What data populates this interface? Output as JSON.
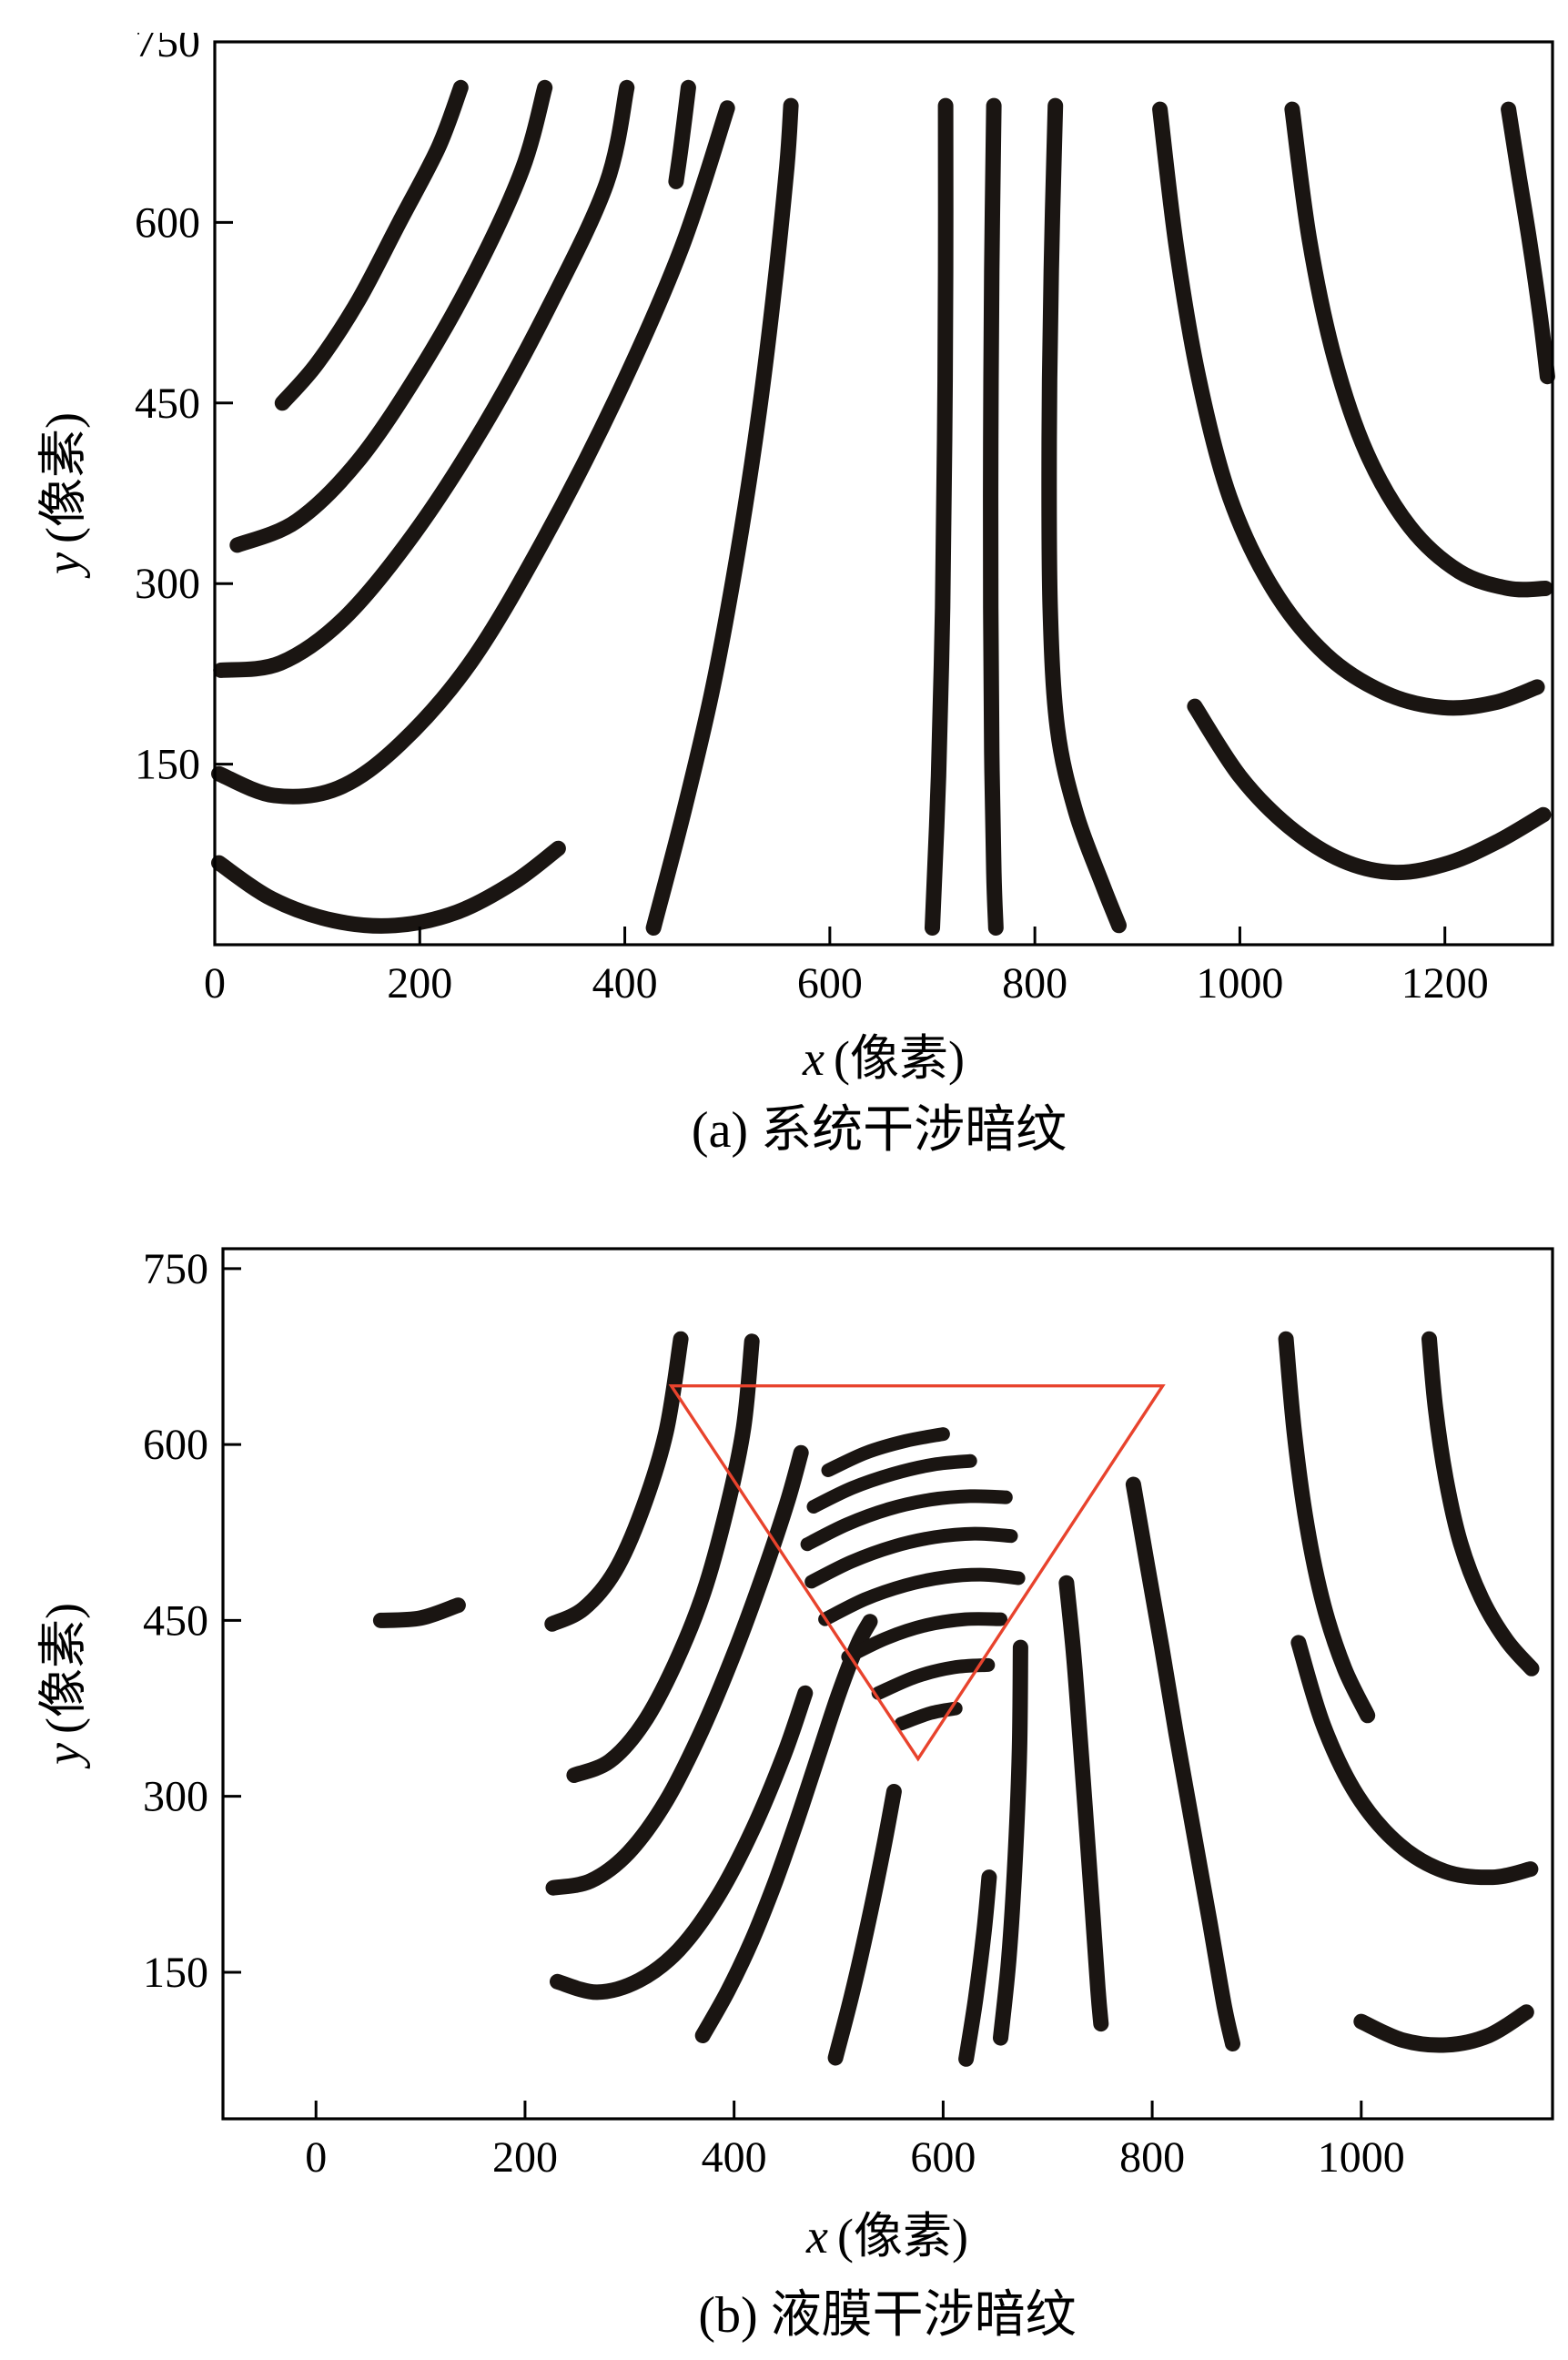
{
  "figure": {
    "background": "#ffffff",
    "fringe_color": "#1a1512",
    "axis_color": "#000000",
    "triangle_color": "#e8432d"
  },
  "chart_data": [
    {
      "id": "a",
      "type": "line",
      "caption": "(a) 系统干涉暗纹",
      "xlabel_var": "x",
      "xlabel_unit": "(像素)",
      "ylabel_var": "y",
      "ylabel_unit": "(像素)",
      "xlim": [
        0,
        1305
      ],
      "ylim": [
        0,
        750
      ],
      "xticks": [
        0,
        200,
        400,
        600,
        800,
        1000,
        1200
      ],
      "yticks": [
        150,
        300,
        450,
        600,
        750
      ],
      "grid": false,
      "fringes": [
        [
          [
            66,
            450
          ],
          [
            100,
            483
          ],
          [
            140,
            535
          ],
          [
            180,
            600
          ],
          [
            218,
            662
          ],
          [
            240,
            712
          ]
        ],
        [
          [
            22,
            332
          ],
          [
            80,
            352
          ],
          [
            140,
            402
          ],
          [
            200,
            477
          ],
          [
            255,
            560
          ],
          [
            300,
            644
          ],
          [
            322,
            712
          ]
        ],
        [
          [
            6,
            228
          ],
          [
            64,
            234
          ],
          [
            126,
            271
          ],
          [
            194,
            341
          ],
          [
            262,
            430
          ],
          [
            326,
            530
          ],
          [
            382,
            632
          ],
          [
            402,
            712
          ]
        ],
        [
          [
            4,
            142
          ],
          [
            58,
            124
          ],
          [
            120,
            130
          ],
          [
            181,
            167
          ],
          [
            250,
            235
          ],
          [
            320,
            335
          ],
          [
            392,
            455
          ],
          [
            455,
            578
          ],
          [
            500,
            695
          ]
        ],
        [
          [
            4,
            68
          ],
          [
            56,
            38
          ],
          [
            116,
            20
          ],
          [
            176,
            16
          ],
          [
            236,
            27
          ],
          [
            292,
            52
          ],
          [
            335,
            80
          ]
        ],
        [
          [
            462,
            712
          ],
          [
            455,
            664
          ],
          [
            450,
            634
          ]
        ],
        [
          [
            428,
            14
          ],
          [
            458,
            112
          ],
          [
            486,
            214
          ],
          [
            510,
            325
          ],
          [
            530,
            436
          ],
          [
            546,
            546
          ],
          [
            558,
            646
          ],
          [
            562,
            697
          ]
        ],
        [
          [
            700,
            14
          ],
          [
            706,
            140
          ],
          [
            710,
            280
          ],
          [
            712,
            420
          ],
          [
            713,
            560
          ],
          [
            713,
            697
          ]
        ],
        [
          [
            762,
            14
          ],
          [
            760,
            60
          ],
          [
            758,
            160
          ],
          [
            757,
            280
          ],
          [
            757,
            420
          ],
          [
            758,
            560
          ],
          [
            760,
            697
          ]
        ],
        [
          [
            882,
            16
          ],
          [
            866,
            50
          ],
          [
            840,
            110
          ],
          [
            822,
            180
          ],
          [
            815,
            280
          ],
          [
            814,
            420
          ],
          [
            816,
            560
          ],
          [
            820,
            697
          ]
        ],
        [
          [
            922,
            694
          ],
          [
            938,
            580
          ],
          [
            960,
            470
          ],
          [
            990,
            372
          ],
          [
            1032,
            296
          ],
          [
            1084,
            241
          ],
          [
            1142,
            209
          ],
          [
            1198,
            197
          ],
          [
            1248,
            201
          ],
          [
            1290,
            214
          ]
        ],
        [
          [
            1051,
            694
          ],
          [
            1068,
            585
          ],
          [
            1092,
            488
          ],
          [
            1124,
            408
          ],
          [
            1166,
            347
          ],
          [
            1214,
            310
          ],
          [
            1262,
            296
          ],
          [
            1298,
            296
          ]
        ],
        [
          [
            1262,
            694
          ],
          [
            1272,
            640
          ],
          [
            1283,
            582
          ],
          [
            1293,
            522
          ],
          [
            1300,
            472
          ]
        ],
        [
          [
            956,
            198
          ],
          [
            1000,
            140
          ],
          [
            1048,
            98
          ],
          [
            1100,
            70
          ],
          [
            1152,
            60
          ],
          [
            1204,
            68
          ],
          [
            1252,
            86
          ],
          [
            1296,
            108
          ]
        ]
      ]
    },
    {
      "id": "b",
      "type": "line",
      "caption": "(b) 液膜干涉暗纹",
      "xlabel_var": "x",
      "xlabel_unit": "(像素)",
      "ylabel_var": "y",
      "ylabel_unit": "(像素)",
      "xlim": [
        -89,
        1183
      ],
      "ylim": [
        25,
        767
      ],
      "xticks": [
        0,
        200,
        400,
        600,
        800,
        1000
      ],
      "yticks": [
        150,
        300,
        450,
        600,
        750
      ],
      "grid": false,
      "fringes": [
        [
          [
            62,
            450
          ],
          [
            100,
            452
          ],
          [
            136,
            463
          ]
        ],
        [
          [
            226,
            447
          ],
          [
            256,
            460
          ],
          [
            286,
            492
          ],
          [
            312,
            544
          ],
          [
            335,
            611
          ],
          [
            349,
            690
          ]
        ],
        [
          [
            247,
            318
          ],
          [
            281,
            330
          ],
          [
            313,
            362
          ],
          [
            343,
            412
          ],
          [
            371,
            474
          ],
          [
            393,
            545
          ],
          [
            409,
            614
          ],
          [
            417,
            688
          ]
        ],
        [
          [
            227,
            222
          ],
          [
            263,
            228
          ],
          [
            299,
            252
          ],
          [
            335,
            296
          ],
          [
            369,
            356
          ],
          [
            401,
            424
          ],
          [
            429,
            492
          ],
          [
            451,
            551
          ],
          [
            464,
            593
          ]
        ],
        [
          [
            231,
            142
          ],
          [
            269,
            133
          ],
          [
            309,
            143
          ],
          [
            347,
            169
          ],
          [
            384,
            214
          ],
          [
            418,
            272
          ],
          [
            448,
            336
          ],
          [
            468,
            388
          ]
        ],
        [
          [
            370,
            96
          ],
          [
            394,
            134
          ],
          [
            417,
            177
          ],
          [
            439,
            226
          ],
          [
            460,
            279
          ],
          [
            480,
            333
          ],
          [
            500,
            387
          ],
          [
            518,
            429
          ],
          [
            530,
            449
          ]
        ],
        [
          [
            497,
            77
          ],
          [
            513,
            132
          ],
          [
            529,
            195
          ],
          [
            543,
            256
          ],
          [
            553,
            304
          ]
        ],
        [
          [
            622,
            76
          ],
          [
            631,
            127
          ],
          [
            639,
            184
          ],
          [
            644,
            231
          ]
        ],
        [
          [
            655,
            94
          ],
          [
            663,
            163
          ],
          [
            669,
            248
          ],
          [
            673,
            338
          ],
          [
            674,
            427
          ]
        ],
        [
          [
            718,
            482
          ],
          [
            725,
            420
          ],
          [
            731,
            350
          ],
          [
            737,
            276
          ],
          [
            743,
            201
          ],
          [
            748,
            136
          ],
          [
            751,
            106
          ]
        ],
        [
          [
            782,
            566
          ],
          [
            795,
            499
          ],
          [
            809,
            428
          ],
          [
            823,
            353
          ],
          [
            839,
            273
          ],
          [
            855,
            193
          ],
          [
            869,
            121
          ],
          [
            877,
            89
          ]
        ],
        [
          [
            928,
            690
          ],
          [
            936,
            610
          ],
          [
            948,
            531
          ],
          [
            964,
            463
          ],
          [
            984,
            409
          ],
          [
            1006,
            369
          ]
        ],
        [
          [
            1065,
            690
          ],
          [
            1071,
            631
          ],
          [
            1081,
            571
          ],
          [
            1095,
            516
          ],
          [
            1115,
            469
          ],
          [
            1139,
            433
          ],
          [
            1163,
            409
          ]
        ],
        [
          [
            940,
            431
          ],
          [
            964,
            360
          ],
          [
            996,
            301
          ],
          [
            1036,
            259
          ],
          [
            1080,
            236
          ],
          [
            1126,
            231
          ],
          [
            1162,
            238
          ]
        ],
        [
          [
            1000,
            108
          ],
          [
            1040,
            92
          ],
          [
            1082,
            88
          ],
          [
            1122,
            96
          ],
          [
            1158,
            116
          ]
        ]
      ],
      "triangle": [
        [
          340,
          650
        ],
        [
          810,
          650
        ],
        [
          576,
          332
        ]
      ],
      "inner_fringes": [
        [
          [
            490,
            578
          ],
          [
            526,
            593
          ],
          [
            564,
            603
          ],
          [
            600,
            609
          ]
        ],
        [
          [
            476,
            547
          ],
          [
            513,
            563
          ],
          [
            552,
            575
          ],
          [
            591,
            583
          ],
          [
            626,
            586
          ]
        ],
        [
          [
            470,
            515
          ],
          [
            508,
            532
          ],
          [
            548,
            545
          ],
          [
            588,
            553
          ],
          [
            626,
            556
          ],
          [
            660,
            555
          ]
        ],
        [
          [
            474,
            483
          ],
          [
            512,
            500
          ],
          [
            552,
            513
          ],
          [
            592,
            521
          ],
          [
            630,
            524
          ],
          [
            665,
            522
          ]
        ],
        [
          [
            487,
            451
          ],
          [
            525,
            468
          ],
          [
            564,
            480
          ],
          [
            602,
            487
          ],
          [
            639,
            489
          ],
          [
            672,
            486
          ]
        ],
        [
          [
            509,
            419
          ],
          [
            546,
            435
          ],
          [
            584,
            446
          ],
          [
            621,
            451
          ],
          [
            655,
            451
          ]
        ],
        [
          [
            538,
            388
          ],
          [
            574,
            402
          ],
          [
            610,
            410
          ],
          [
            643,
            412
          ]
        ],
        [
          [
            560,
            362
          ],
          [
            588,
            371
          ],
          [
            612,
            375
          ]
        ]
      ]
    }
  ]
}
